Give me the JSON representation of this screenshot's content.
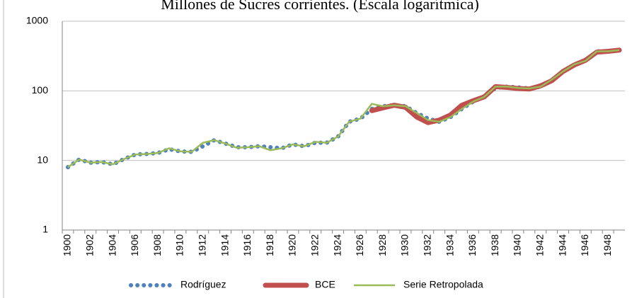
{
  "chart_data": {
    "type": "line",
    "title": "Millones de Sucres corrientes. (Escala logarítmica)",
    "categories": [
      "1900",
      null,
      "1902",
      null,
      "1904",
      null,
      "1906",
      null,
      "1908",
      null,
      "1910",
      null,
      "1912",
      null,
      "1914",
      null,
      "1916",
      null,
      "1918",
      null,
      "1920",
      null,
      "1922",
      null,
      "1924",
      null,
      "1926",
      null,
      "1928",
      null,
      "1930",
      null,
      "1932",
      null,
      "1934",
      null,
      "1936",
      null,
      "1938",
      null,
      "1940",
      null,
      "1942",
      null,
      "1944",
      null,
      "1946",
      null,
      "1948",
      null
    ],
    "series": [
      {
        "name": "Rodríguez",
        "color": "#4f81bd",
        "values": [
          8.0,
          10.3,
          9.3,
          9.5,
          8.8,
          10.5,
          12.2,
          12.4,
          12.8,
          14.5,
          13.5,
          13.3,
          16,
          19.5,
          17.5,
          15.5,
          15.5,
          16.0,
          15.5,
          15.0,
          17.0,
          16.0,
          18.0,
          18.0,
          22,
          36,
          40,
          55,
          60,
          62,
          60,
          48,
          40,
          36,
          42,
          55,
          70,
          82,
          110,
          115,
          112,
          108,
          115,
          140,
          190,
          240,
          270,
          370,
          370,
          385
        ]
      },
      {
        "name": "BCE",
        "color": "#c0504d",
        "values": [
          null,
          null,
          null,
          null,
          null,
          null,
          null,
          null,
          null,
          null,
          null,
          null,
          null,
          null,
          null,
          null,
          null,
          null,
          null,
          null,
          null,
          null,
          null,
          null,
          null,
          null,
          null,
          52,
          57,
          62,
          58,
          42,
          35,
          38,
          45,
          62,
          72,
          82,
          115,
          112,
          108,
          106,
          118,
          140,
          190,
          235,
          275,
          360,
          370,
          385
        ]
      },
      {
        "name": "Serie Retropolada",
        "color": "#9bbb59",
        "values": [
          8.0,
          10.3,
          9.3,
          9.5,
          8.8,
          10.5,
          12.2,
          12.4,
          12.8,
          15.0,
          13.5,
          13.3,
          18.0,
          19.5,
          17.5,
          15.2,
          15.5,
          16.0,
          14.0,
          15.0,
          17.0,
          16.0,
          18.5,
          18.0,
          22,
          36,
          40,
          65,
          60,
          62,
          60,
          48,
          38,
          36,
          42,
          55,
          70,
          82,
          115,
          115,
          110,
          108,
          115,
          145,
          190,
          240,
          270,
          370,
          370,
          385
        ]
      }
    ],
    "ylim": [
      1,
      1000
    ],
    "yticks": [
      1,
      10,
      100,
      1000
    ],
    "log_y": true,
    "grid": true,
    "legend": "bottom"
  }
}
